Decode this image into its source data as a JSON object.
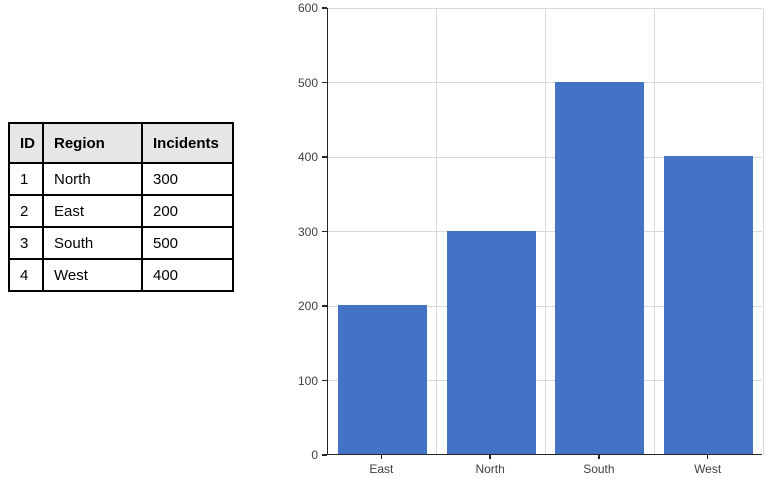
{
  "table": {
    "columns": [
      "ID",
      "Region",
      "Incidents"
    ],
    "rows": [
      [
        "1",
        "North",
        "300"
      ],
      [
        "2",
        "East",
        "200"
      ],
      [
        "3",
        "South",
        "500"
      ],
      [
        "4",
        "West",
        "400"
      ]
    ],
    "header_bg": "#E7E6E6",
    "border_color": "#000000"
  },
  "chart_data": {
    "type": "bar",
    "categories": [
      "East",
      "North",
      "South",
      "West"
    ],
    "values": [
      200,
      300,
      500,
      400
    ],
    "title": "",
    "xlabel": "",
    "ylabel": "",
    "ylim": [
      0,
      600
    ],
    "yticks": [
      0,
      100,
      200,
      300,
      400,
      500,
      600
    ],
    "grid": true,
    "legend": false,
    "bar_color": "#4472C4",
    "gridline_color": "#D9D9D9",
    "axis_color": "#262626",
    "label_color": "#404040"
  }
}
